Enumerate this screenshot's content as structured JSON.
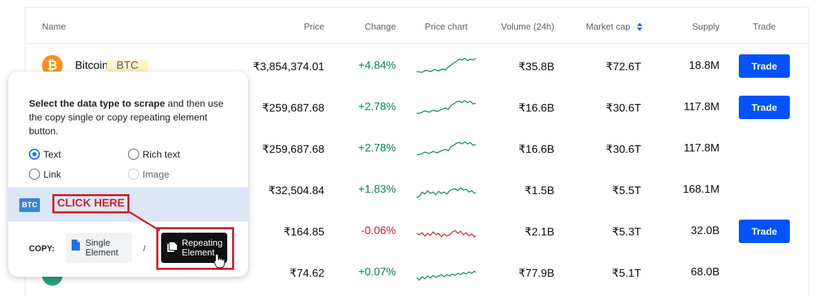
{
  "table": {
    "headers": {
      "name": "Name",
      "price": "Price",
      "change": "Change",
      "price_chart": "Price chart",
      "volume": "Volume (24h)",
      "market_cap": "Market cap",
      "supply": "Supply",
      "trade": "Trade"
    },
    "rows": [
      {
        "name": "Bitcoin",
        "symbol": "BTC",
        "price": "₹3,854,374.01",
        "change": "+4.84%",
        "trend": "up",
        "volume": "₹35.8B",
        "market_cap": "₹72.6T",
        "supply": "18.8M",
        "trade_label": "Trade"
      },
      {
        "price": "₹259,687.68",
        "change": "+2.78%",
        "trend": "up",
        "volume": "₹16.6B",
        "market_cap": "₹30.6T",
        "supply": "117.8M",
        "trade_label": "Trade"
      },
      {
        "price": "₹259,687.68",
        "change": "+2.78%",
        "trend": "up",
        "volume": "₹16.6B",
        "market_cap": "₹30.6T",
        "supply": "117.8M"
      },
      {
        "price": "₹32,504.84",
        "change": "+1.83%",
        "trend": "up",
        "volume": "₹1.5B",
        "market_cap": "₹5.5T",
        "supply": "168.1M"
      },
      {
        "price": "₹164.85",
        "change": "-0.06%",
        "trend": "down",
        "volume": "₹2.1B",
        "market_cap": "₹5.3T",
        "supply": "32.0B",
        "trade_label": "Trade"
      },
      {
        "price": "₹74.62",
        "change": "+0.07%",
        "trend": "up",
        "volume": "₹77.9B",
        "market_cap": "₹5.1T",
        "supply": "68.0B"
      }
    ]
  },
  "popup": {
    "instruction_bold": "Select the data type to scrape",
    "instruction_rest": " and then use the copy single or copy repeating element button.",
    "options": {
      "text": "Text",
      "rich_text": "Rich text",
      "link": "Link",
      "image": "Image"
    },
    "selected_option": "Text",
    "preview_chip": "BTC",
    "copy_label": "COPY:",
    "single_line1": "Single",
    "single_line2": "Element",
    "separator": "/",
    "repeat_line1": "Repeating",
    "repeat_line2": "Element"
  },
  "annotation": {
    "click_here": "CLICK HERE",
    "color": "#d3232d"
  },
  "colors": {
    "positive": "#098551",
    "negative": "#cf202f",
    "trade_button": "#0052ff",
    "bitcoin": "#f7931a"
  }
}
